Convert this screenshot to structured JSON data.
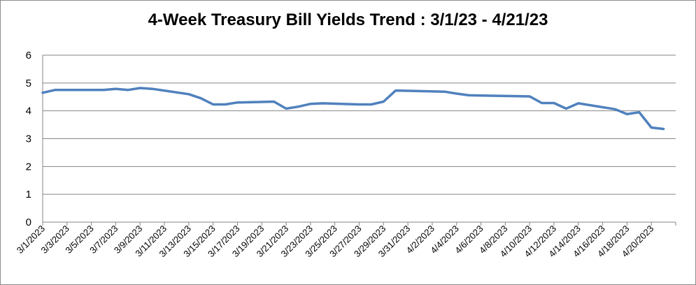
{
  "chart_data": {
    "type": "line",
    "title": "4-Week Treasury Bill Yields Trend : 3/1/23 - 4/21/23",
    "xlabel": "",
    "ylabel": "",
    "ylim": [
      0,
      6
    ],
    "yticks": [
      0,
      1,
      2,
      3,
      4,
      5,
      6
    ],
    "grid": true,
    "legend": "none",
    "line_color": "#4f81bd",
    "x_tick_labels": [
      "3/1/2023",
      "3/3/2023",
      "3/5/2023",
      "3/7/2023",
      "3/9/2023",
      "3/11/2023",
      "3/13/2023",
      "3/15/2023",
      "3/17/2023",
      "3/19/2023",
      "3/21/2023",
      "3/23/2023",
      "3/25/2023",
      "3/27/2023",
      "3/29/2023",
      "3/31/2023",
      "4/2/2023",
      "4/4/2023",
      "4/6/2023",
      "4/8/2023",
      "4/10/2023",
      "4/12/2023",
      "4/14/2023",
      "4/16/2023",
      "4/18/2023",
      "4/20/2023"
    ],
    "series": [
      {
        "x": [
          "3/1/2023",
          "3/2/2023",
          "3/3/2023",
          "3/6/2023",
          "3/7/2023",
          "3/8/2023",
          "3/9/2023",
          "3/10/2023",
          "3/13/2023",
          "3/14/2023",
          "3/15/2023",
          "3/16/2023",
          "3/17/2023",
          "3/20/2023",
          "3/21/2023",
          "3/22/2023",
          "3/23/2023",
          "3/24/2023",
          "3/27/2023",
          "3/28/2023",
          "3/29/2023",
          "3/30/2023",
          "3/31/2023",
          "4/3/2023",
          "4/4/2023",
          "4/5/2023",
          "4/6/2023",
          "4/10/2023",
          "4/11/2023",
          "4/12/2023",
          "4/13/2023",
          "4/14/2023",
          "4/17/2023",
          "4/18/2023",
          "4/19/2023",
          "4/20/2023",
          "4/21/2023"
        ],
        "values": [
          4.65,
          4.75,
          4.75,
          4.75,
          4.79,
          4.75,
          4.82,
          4.79,
          4.6,
          4.45,
          4.23,
          4.23,
          4.3,
          4.33,
          4.08,
          4.15,
          4.25,
          4.27,
          4.23,
          4.23,
          4.33,
          4.73,
          4.72,
          4.69,
          4.62,
          4.56,
          4.55,
          4.52,
          4.28,
          4.28,
          4.08,
          4.27,
          4.06,
          3.88,
          3.95,
          3.4,
          3.35
        ]
      }
    ]
  }
}
